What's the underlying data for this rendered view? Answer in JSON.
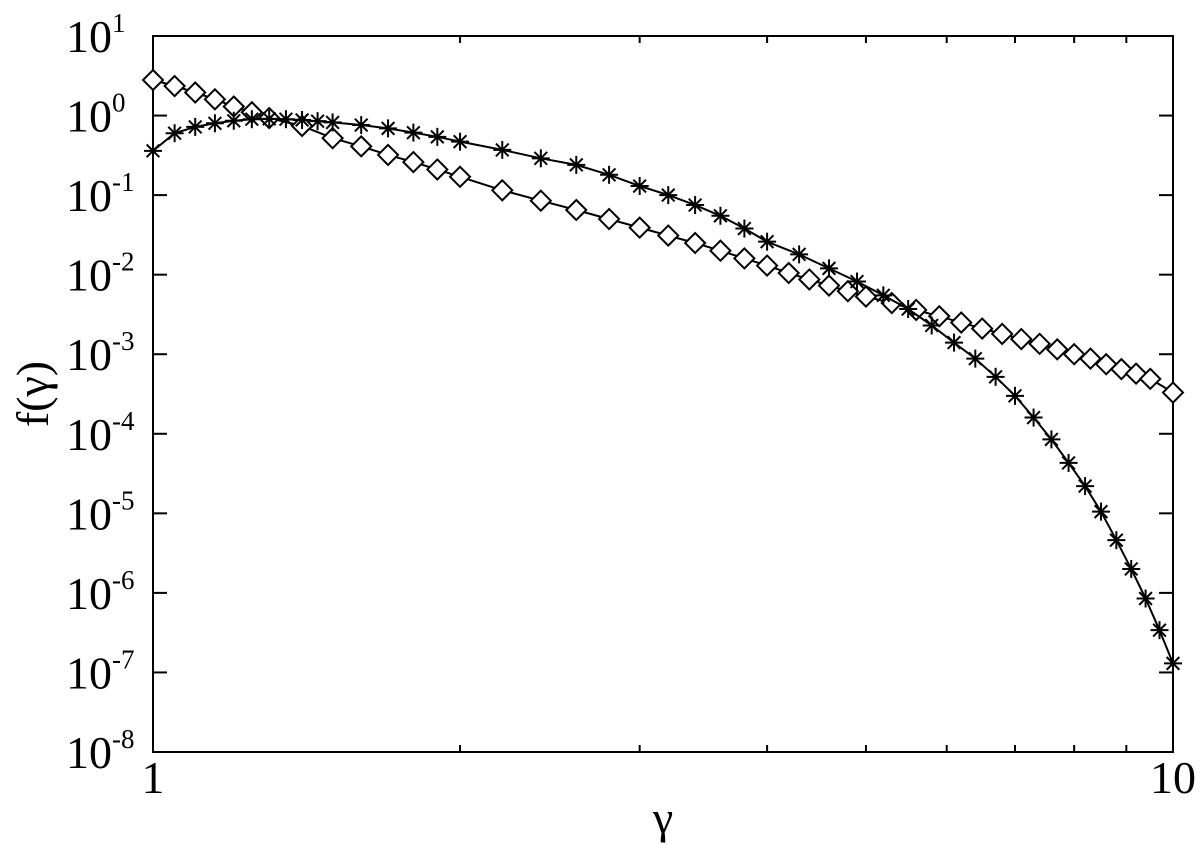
{
  "chart_data": {
    "type": "line",
    "title": "",
    "xlabel": "γ",
    "ylabel": "f(γ)",
    "xscale": "log",
    "yscale": "log",
    "xlim": [
      1,
      10
    ],
    "ylim": [
      1e-08,
      10
    ],
    "grid": false,
    "legend": "none",
    "colors": {
      "line": "#000000",
      "marker": "#000000"
    },
    "x_ticks": [
      {
        "value": 1,
        "label": "1"
      },
      {
        "value": 10,
        "label": "10"
      }
    ],
    "x_minor_ticks": [
      2,
      3,
      4,
      5,
      6,
      7,
      8,
      9
    ],
    "y_ticks": [
      {
        "value": 10,
        "base": "10",
        "exp": "1"
      },
      {
        "value": 1,
        "base": "10",
        "exp": "0"
      },
      {
        "value": 0.1,
        "base": "10",
        "exp": "-1"
      },
      {
        "value": 0.01,
        "base": "10",
        "exp": "-2"
      },
      {
        "value": 0.001,
        "base": "10",
        "exp": "-3"
      },
      {
        "value": 0.0001,
        "base": "10",
        "exp": "-4"
      },
      {
        "value": 1e-05,
        "base": "10",
        "exp": "-5"
      },
      {
        "value": 1e-06,
        "base": "10",
        "exp": "-6"
      },
      {
        "value": 1e-07,
        "base": "10",
        "exp": "-7"
      },
      {
        "value": 1e-08,
        "base": "10",
        "exp": "-8"
      }
    ],
    "series": [
      {
        "marker": "diamond",
        "x": [
          1.0,
          1.05,
          1.1,
          1.15,
          1.2,
          1.25,
          1.3,
          1.4,
          1.5,
          1.6,
          1.7,
          1.8,
          1.9,
          2.0,
          2.2,
          2.4,
          2.6,
          2.8,
          3.0,
          3.2,
          3.4,
          3.6,
          3.8,
          4.0,
          4.2,
          4.4,
          4.6,
          4.8,
          5.0,
          5.3,
          5.6,
          5.9,
          6.2,
          6.5,
          6.8,
          7.1,
          7.4,
          7.7,
          8.0,
          8.3,
          8.6,
          8.9,
          9.2,
          9.5,
          10.0
        ],
        "y": [
          2.8,
          2.35,
          1.95,
          1.6,
          1.3,
          1.1,
          0.93,
          0.74,
          0.52,
          0.41,
          0.32,
          0.26,
          0.21,
          0.17,
          0.115,
          0.085,
          0.065,
          0.05,
          0.039,
          0.031,
          0.025,
          0.02,
          0.016,
          0.013,
          0.0105,
          0.0087,
          0.0073,
          0.0062,
          0.0053,
          0.0044,
          0.0036,
          0.003,
          0.0025,
          0.0021,
          0.0018,
          0.00155,
          0.00135,
          0.00115,
          0.001,
          0.00088,
          0.00075,
          0.00065,
          0.00057,
          0.00049,
          0.00033
        ]
      },
      {
        "marker": "star",
        "x": [
          1.0,
          1.05,
          1.1,
          1.15,
          1.2,
          1.25,
          1.3,
          1.35,
          1.4,
          1.45,
          1.5,
          1.6,
          1.7,
          1.8,
          1.9,
          2.0,
          2.2,
          2.4,
          2.6,
          2.8,
          3.0,
          3.2,
          3.4,
          3.6,
          3.8,
          4.0,
          4.3,
          4.6,
          4.9,
          5.2,
          5.5,
          5.8,
          6.1,
          6.4,
          6.7,
          7.0,
          7.3,
          7.6,
          7.9,
          8.2,
          8.5,
          8.8,
          9.1,
          9.4,
          9.7,
          10.0
        ],
        "y": [
          0.36,
          0.6,
          0.72,
          0.8,
          0.86,
          0.9,
          0.91,
          0.9,
          0.88,
          0.85,
          0.82,
          0.76,
          0.69,
          0.61,
          0.54,
          0.47,
          0.37,
          0.29,
          0.24,
          0.18,
          0.13,
          0.1,
          0.075,
          0.055,
          0.038,
          0.026,
          0.018,
          0.012,
          0.0082,
          0.0055,
          0.0037,
          0.0023,
          0.0014,
          0.00088,
          0.00052,
          0.0003,
          0.00016,
          8.5e-05,
          4.3e-05,
          2.2e-05,
          1.05e-05,
          4.6e-06,
          2e-06,
          8.5e-07,
          3.4e-07,
          1.3e-07
        ]
      }
    ]
  }
}
